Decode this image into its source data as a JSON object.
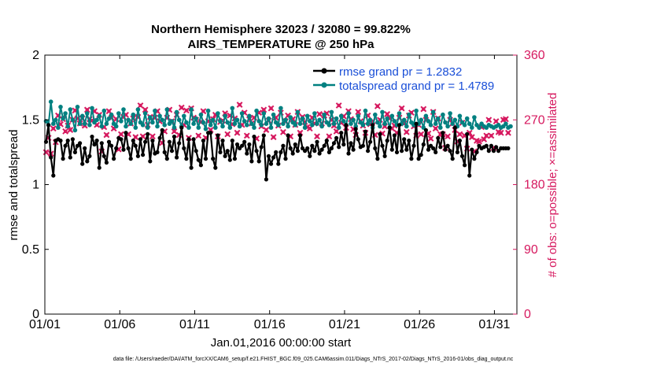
{
  "chart_data": {
    "type": "line",
    "title_line1": "Northern Hemisphere 32023 / 32080 = 99.822%",
    "title_line2": "AIRS_TEMPERATURE @ 250 hPa",
    "xlabel": "Jan.01,2016 00:00:00 start",
    "ylabel_left": "rmse and totalspread",
    "ylabel_right": "# of obs: o=possible; ×=assimilated",
    "footer": "data file: /Users/raeder/DAI/ATM_forcXX/CAM6_setup/f.e21.FHIST_BGC.f09_025.CAM6assim.011/Diags_NTrS_2017-02/Diags_NTrS_2016-01/obs_diag_output.nc",
    "xlim": [
      1,
      32.5
    ],
    "ylim_left": [
      0,
      2
    ],
    "ylim_right": [
      0,
      360
    ],
    "x_ticks": [
      {
        "value": 1,
        "label": "01/01"
      },
      {
        "value": 6,
        "label": "01/06"
      },
      {
        "value": 11,
        "label": "01/11"
      },
      {
        "value": 16,
        "label": "01/16"
      },
      {
        "value": 21,
        "label": "01/21"
      },
      {
        "value": 26,
        "label": "01/26"
      },
      {
        "value": 31,
        "label": "01/31"
      }
    ],
    "y_ticks_left": [
      {
        "value": 0,
        "label": "0"
      },
      {
        "value": 0.5,
        "label": "0.5"
      },
      {
        "value": 1,
        "label": "1"
      },
      {
        "value": 1.5,
        "label": "1.5"
      },
      {
        "value": 2,
        "label": "2"
      }
    ],
    "y_ticks_right": [
      {
        "value": 0,
        "label": "0"
      },
      {
        "value": 90,
        "label": "90"
      },
      {
        "value": 180,
        "label": "180"
      },
      {
        "value": 270,
        "label": "270"
      },
      {
        "value": 360,
        "label": "360"
      }
    ],
    "colors": {
      "rmse": "#000000",
      "spread": "#008080",
      "obs": "#d6195f",
      "legend_text": "#1a4fd8"
    },
    "series": [
      {
        "name": "rmse grand pr = 1.2832",
        "axis": "left",
        "values": [
          1.33,
          1.46,
          1.21,
          1.07,
          1.34,
          1.35,
          1.34,
          1.2,
          1.3,
          1.34,
          1.21,
          1.35,
          1.25,
          1.3,
          1.32,
          1.16,
          1.28,
          1.18,
          1.22,
          1.37,
          1.31,
          1.34,
          1.13,
          1.32,
          1.22,
          1.17,
          1.33,
          1.3,
          1.2,
          1.28,
          1.36,
          1.35,
          1.27,
          1.4,
          1.28,
          1.2,
          1.34,
          1.3,
          1.22,
          1.35,
          1.23,
          1.33,
          1.39,
          1.18,
          1.34,
          1.24,
          1.25,
          1.36,
          1.42,
          1.25,
          1.2,
          1.33,
          1.26,
          1.37,
          1.21,
          1.32,
          1.44,
          1.28,
          1.2,
          1.35,
          1.13,
          1.35,
          1.26,
          1.19,
          1.15,
          1.34,
          1.2,
          1.4,
          1.4,
          1.2,
          1.13,
          1.38,
          1.25,
          1.34,
          1.22,
          1.26,
          1.19,
          1.34,
          1.2,
          1.31,
          1.28,
          1.3,
          1.33,
          1.24,
          1.31,
          1.18,
          1.37,
          1.26,
          1.18,
          1.29,
          1.38,
          1.04,
          1.22,
          1.16,
          1.21,
          1.25,
          1.16,
          1.25,
          1.3,
          1.2,
          1.38,
          1.28,
          1.24,
          1.31,
          1.26,
          1.38,
          1.28,
          1.26,
          1.28,
          1.22,
          1.3,
          1.26,
          1.33,
          1.24,
          1.27,
          1.3,
          1.34,
          1.25,
          1.28,
          1.32,
          1.36,
          1.29,
          1.4,
          1.31,
          1.46,
          1.24,
          1.32,
          1.27,
          1.43,
          1.35,
          1.29,
          1.3,
          1.41,
          1.26,
          1.33,
          1.46,
          1.28,
          1.2,
          1.39,
          1.3,
          1.22,
          1.34,
          1.44,
          1.27,
          1.38,
          1.25,
          1.46,
          1.26,
          1.35,
          1.27,
          1.34,
          1.2,
          1.3,
          1.47,
          1.2,
          1.23,
          1.31,
          1.42,
          1.27,
          1.3,
          1.28,
          1.25,
          1.36,
          1.29,
          1.4,
          1.27,
          1.3,
          1.26,
          1.2,
          1.44,
          1.25,
          1.34,
          1.22,
          1.15,
          1.39,
          1.07,
          1.27,
          1.2,
          1.25,
          1.3,
          1.28,
          1.29,
          1.3,
          1.26,
          1.3,
          1.26,
          1.29,
          1.26,
          1.28,
          1.28,
          1.28,
          1.28
        ]
      },
      {
        "name": "totalspread grand pr = 1.4789",
        "axis": "left",
        "values": [
          1.49,
          1.46,
          1.64,
          1.47,
          1.5,
          1.44,
          1.6,
          1.51,
          1.55,
          1.45,
          1.58,
          1.5,
          1.42,
          1.6,
          1.47,
          1.53,
          1.47,
          1.55,
          1.46,
          1.59,
          1.48,
          1.5,
          1.53,
          1.45,
          1.57,
          1.47,
          1.51,
          1.54,
          1.47,
          1.45,
          1.55,
          1.49,
          1.58,
          1.45,
          1.5,
          1.47,
          1.54,
          1.44,
          1.58,
          1.48,
          1.46,
          1.55,
          1.44,
          1.52,
          1.48,
          1.57,
          1.45,
          1.53,
          1.5,
          1.46,
          1.58,
          1.47,
          1.49,
          1.44,
          1.56,
          1.5,
          1.45,
          1.53,
          1.48,
          1.44,
          1.58,
          1.47,
          1.51,
          1.44,
          1.54,
          1.48,
          1.43,
          1.57,
          1.46,
          1.5,
          1.44,
          1.55,
          1.49,
          1.45,
          1.53,
          1.48,
          1.44,
          1.59,
          1.47,
          1.5,
          1.45,
          1.55,
          1.49,
          1.46,
          1.53,
          1.47,
          1.44,
          1.57,
          1.49,
          1.46,
          1.55,
          1.47,
          1.51,
          1.44,
          1.54,
          1.48,
          1.46,
          1.59,
          1.47,
          1.5,
          1.45,
          1.52,
          1.48,
          1.46,
          1.56,
          1.47,
          1.51,
          1.44,
          1.53,
          1.49,
          1.46,
          1.55,
          1.47,
          1.5,
          1.45,
          1.54,
          1.48,
          1.46,
          1.56,
          1.47,
          1.51,
          1.44,
          1.53,
          1.49,
          1.46,
          1.55,
          1.47,
          1.5,
          1.45,
          1.53,
          1.48,
          1.46,
          1.57,
          1.47,
          1.5,
          1.44,
          1.54,
          1.48,
          1.45,
          1.56,
          1.47,
          1.51,
          1.44,
          1.53,
          1.49,
          1.46,
          1.55,
          1.47,
          1.5,
          1.45,
          1.54,
          1.48,
          1.46,
          1.57,
          1.47,
          1.5,
          1.44,
          1.53,
          1.49,
          1.46,
          1.56,
          1.47,
          1.51,
          1.44,
          1.54,
          1.48,
          1.45,
          1.55,
          1.47,
          1.5,
          1.45,
          1.53,
          1.48,
          1.46,
          1.51,
          1.47,
          1.44,
          1.52,
          1.46,
          1.44,
          1.47,
          1.45,
          1.44,
          1.46,
          1.45,
          1.44,
          1.45,
          1.46,
          1.44,
          1.45,
          1.47,
          1.44,
          1.45
        ]
      }
    ],
    "obs_assimilated": [
      225,
      245,
      223,
      258,
      239,
      276,
      264,
      271,
      254,
      262,
      256,
      270,
      283,
      272,
      265,
      272,
      262,
      284,
      271,
      269,
      282,
      263,
      277,
      226,
      260,
      249,
      282,
      273,
      258,
      271,
      229,
      250,
      274,
      277,
      250,
      265,
      272,
      246,
      274,
      290,
      247,
      284,
      263,
      274,
      247,
      273,
      282,
      268,
      238,
      254,
      273,
      284,
      268,
      254,
      277,
      249,
      287,
      263,
      283,
      245,
      286,
      273,
      270,
      248,
      267,
      282,
      245,
      268,
      256,
      271,
      277,
      247,
      267,
      269,
      279,
      250,
      276,
      264,
      272,
      252,
      291,
      263,
      280,
      248,
      271,
      265,
      273,
      244,
      280,
      261,
      284,
      256,
      269,
      286,
      246,
      273,
      262,
      280,
      253,
      268,
      276,
      247,
      271,
      263,
      281,
      252,
      274,
      267,
      260,
      258,
      273,
      265,
      247,
      278,
      265,
      276,
      279,
      247,
      270,
      262,
      254,
      290,
      266,
      275,
      259,
      282,
      271,
      257,
      249,
      281,
      268,
      262,
      252,
      276,
      264,
      268,
      249,
      289,
      270,
      251,
      261,
      278,
      272,
      258,
      262,
      252,
      273,
      286,
      265,
      253,
      276,
      280,
      261,
      248,
      263,
      250,
      285,
      270,
      251,
      244,
      281,
      258,
      272,
      250,
      250,
      231,
      247,
      270,
      265,
      256,
      240,
      250,
      266,
      248,
      230,
      252,
      246,
      226,
      241,
      240,
      260,
      243,
      248,
      270,
      248,
      231,
      268,
      253,
      252,
      270,
      271,
      252
    ]
  }
}
